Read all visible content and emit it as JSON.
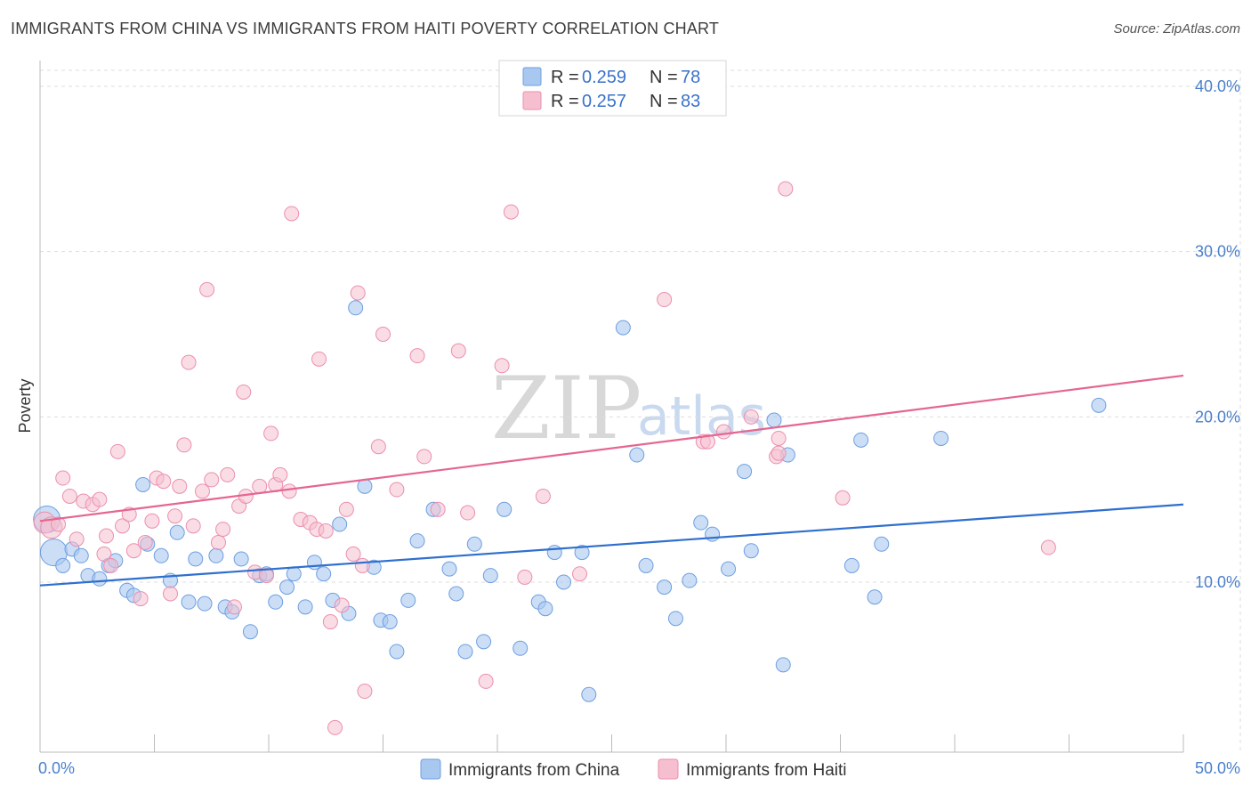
{
  "header": {
    "title": "IMMIGRANTS FROM CHINA VS IMMIGRANTS FROM HAITI POVERTY CORRELATION CHART",
    "source": "Source: ZipAtlas.com"
  },
  "watermark": {
    "zip": "ZIP",
    "atlas": "atlas"
  },
  "colors": {
    "china_fill": "#a9c8f0",
    "china_stroke": "#6d9fe0",
    "china_line": "#2f6fce",
    "haiti_fill": "#f6bfd0",
    "haiti_stroke": "#eb8fae",
    "haiti_line": "#e56690",
    "grid": "#dddddd",
    "axis_label": "#4a7fcc"
  },
  "legend": {
    "china": {
      "r_label": "R = ",
      "r_value": "0.259",
      "n_label": "N = ",
      "n_value": "78"
    },
    "haiti": {
      "r_label": "R = ",
      "r_value": "0.257",
      "n_label": "N = ",
      "n_value": "83"
    }
  },
  "chart_data": {
    "type": "scatter",
    "title": "IMMIGRANTS FROM CHINA VS IMMIGRANTS FROM HAITI POVERTY CORRELATION CHART",
    "xlabel": "",
    "ylabel": "Poverty",
    "xlim": [
      0,
      50
    ],
    "ylim": [
      0,
      40
    ],
    "x_tick_labels": [
      "0.0%",
      "50.0%"
    ],
    "y_ticks": [
      10,
      20,
      30,
      40
    ],
    "y_tick_labels": [
      "10.0%",
      "20.0%",
      "30.0%",
      "40.0%"
    ],
    "grid": true,
    "legend_position": "top-center",
    "series": [
      {
        "name": "Immigrants from China",
        "regression": {
          "x0": 0,
          "y0": 9.8,
          "x1": 50,
          "y1": 14.7
        },
        "points": [
          [
            0.3,
            13.8
          ],
          [
            0.6,
            11.8
          ],
          [
            1.0,
            11.0
          ],
          [
            1.4,
            12.0
          ],
          [
            1.8,
            11.6
          ],
          [
            2.1,
            10.4
          ],
          [
            2.6,
            10.2
          ],
          [
            3.0,
            11.0
          ],
          [
            3.3,
            11.3
          ],
          [
            3.8,
            9.5
          ],
          [
            4.1,
            9.2
          ],
          [
            4.7,
            12.3
          ],
          [
            4.5,
            15.9
          ],
          [
            5.3,
            11.6
          ],
          [
            5.7,
            10.1
          ],
          [
            6.0,
            13.0
          ],
          [
            6.5,
            8.8
          ],
          [
            6.8,
            11.4
          ],
          [
            7.2,
            8.7
          ],
          [
            7.7,
            11.6
          ],
          [
            8.1,
            8.5
          ],
          [
            8.4,
            8.2
          ],
          [
            8.8,
            11.4
          ],
          [
            9.2,
            7.0
          ],
          [
            9.6,
            10.4
          ],
          [
            9.9,
            10.5
          ],
          [
            10.3,
            8.8
          ],
          [
            10.8,
            9.7
          ],
          [
            11.1,
            10.5
          ],
          [
            11.6,
            8.5
          ],
          [
            12.0,
            11.2
          ],
          [
            12.4,
            10.5
          ],
          [
            12.8,
            8.9
          ],
          [
            13.1,
            13.5
          ],
          [
            13.5,
            8.1
          ],
          [
            13.8,
            26.6
          ],
          [
            14.2,
            15.8
          ],
          [
            14.6,
            10.9
          ],
          [
            14.9,
            7.7
          ],
          [
            15.3,
            7.6
          ],
          [
            15.6,
            5.8
          ],
          [
            16.1,
            8.9
          ],
          [
            16.5,
            12.5
          ],
          [
            17.2,
            14.4
          ],
          [
            17.9,
            10.8
          ],
          [
            18.2,
            9.3
          ],
          [
            18.6,
            5.8
          ],
          [
            19.0,
            12.3
          ],
          [
            19.4,
            6.4
          ],
          [
            19.7,
            10.4
          ],
          [
            20.3,
            14.4
          ],
          [
            21.0,
            6.0
          ],
          [
            21.8,
            8.8
          ],
          [
            22.1,
            8.4
          ],
          [
            22.5,
            11.8
          ],
          [
            22.9,
            10.0
          ],
          [
            23.7,
            11.8
          ],
          [
            24.0,
            3.2
          ],
          [
            25.5,
            25.4
          ],
          [
            26.1,
            17.7
          ],
          [
            26.5,
            11.0
          ],
          [
            27.3,
            9.7
          ],
          [
            27.8,
            7.8
          ],
          [
            28.4,
            10.1
          ],
          [
            28.9,
            13.6
          ],
          [
            29.4,
            12.9
          ],
          [
            30.1,
            10.8
          ],
          [
            30.8,
            16.7
          ],
          [
            31.1,
            11.9
          ],
          [
            32.1,
            19.8
          ],
          [
            32.7,
            17.7
          ],
          [
            32.5,
            5.0
          ],
          [
            35.5,
            11.0
          ],
          [
            35.9,
            18.6
          ],
          [
            36.5,
            9.1
          ],
          [
            36.8,
            12.3
          ],
          [
            39.4,
            18.7
          ],
          [
            46.3,
            20.7
          ]
        ],
        "sizes_note": "large markers near x=0.3-0.6"
      },
      {
        "name": "Immigrants from Haiti",
        "regression": {
          "x0": 0,
          "y0": 13.7,
          "x1": 50,
          "y1": 22.5
        },
        "points": [
          [
            0.2,
            13.6
          ],
          [
            0.5,
            13.3
          ],
          [
            0.8,
            13.5
          ],
          [
            1.0,
            16.3
          ],
          [
            1.3,
            15.2
          ],
          [
            1.6,
            12.6
          ],
          [
            1.9,
            14.9
          ],
          [
            2.3,
            14.7
          ],
          [
            2.6,
            15.0
          ],
          [
            2.8,
            11.7
          ],
          [
            2.9,
            12.8
          ],
          [
            3.1,
            11.0
          ],
          [
            3.4,
            17.9
          ],
          [
            3.6,
            13.4
          ],
          [
            3.9,
            14.1
          ],
          [
            4.1,
            11.9
          ],
          [
            4.4,
            9.0
          ],
          [
            4.6,
            12.4
          ],
          [
            4.9,
            13.7
          ],
          [
            5.1,
            16.3
          ],
          [
            5.4,
            16.1
          ],
          [
            5.7,
            9.3
          ],
          [
            5.9,
            14.0
          ],
          [
            6.1,
            15.8
          ],
          [
            6.3,
            18.3
          ],
          [
            6.5,
            23.3
          ],
          [
            6.7,
            13.4
          ],
          [
            7.1,
            15.5
          ],
          [
            7.3,
            27.7
          ],
          [
            7.5,
            16.2
          ],
          [
            7.8,
            12.4
          ],
          [
            8.0,
            13.2
          ],
          [
            8.2,
            16.5
          ],
          [
            8.5,
            8.5
          ],
          [
            8.7,
            14.6
          ],
          [
            8.9,
            21.5
          ],
          [
            9.0,
            15.2
          ],
          [
            9.4,
            10.6
          ],
          [
            9.6,
            15.8
          ],
          [
            9.9,
            10.4
          ],
          [
            10.1,
            19.0
          ],
          [
            10.3,
            15.9
          ],
          [
            10.5,
            16.5
          ],
          [
            10.9,
            15.5
          ],
          [
            11.0,
            32.3
          ],
          [
            11.4,
            13.8
          ],
          [
            11.8,
            13.6
          ],
          [
            12.1,
            13.2
          ],
          [
            12.2,
            23.5
          ],
          [
            12.5,
            13.1
          ],
          [
            12.7,
            7.6
          ],
          [
            12.9,
            1.2
          ],
          [
            13.2,
            8.6
          ],
          [
            13.4,
            14.4
          ],
          [
            13.7,
            11.7
          ],
          [
            14.1,
            11.0
          ],
          [
            13.9,
            27.5
          ],
          [
            14.2,
            3.4
          ],
          [
            14.8,
            18.2
          ],
          [
            15.0,
            25.0
          ],
          [
            15.6,
            15.6
          ],
          [
            16.5,
            23.7
          ],
          [
            16.8,
            17.6
          ],
          [
            17.4,
            14.4
          ],
          [
            18.3,
            24.0
          ],
          [
            18.7,
            14.2
          ],
          [
            19.5,
            4.0
          ],
          [
            20.2,
            23.1
          ],
          [
            20.6,
            32.4
          ],
          [
            21.2,
            10.3
          ],
          [
            22.0,
            15.2
          ],
          [
            23.6,
            10.5
          ],
          [
            27.3,
            27.1
          ],
          [
            29.0,
            18.5
          ],
          [
            29.2,
            18.5
          ],
          [
            29.9,
            19.1
          ],
          [
            31.1,
            20.0
          ],
          [
            32.2,
            17.6
          ],
          [
            32.3,
            17.8
          ],
          [
            32.3,
            18.7
          ],
          [
            32.6,
            33.8
          ],
          [
            35.1,
            15.1
          ],
          [
            44.1,
            12.1
          ]
        ]
      }
    ]
  },
  "bottom_legend": {
    "china": "Immigrants from China",
    "haiti": "Immigrants from Haiti"
  }
}
